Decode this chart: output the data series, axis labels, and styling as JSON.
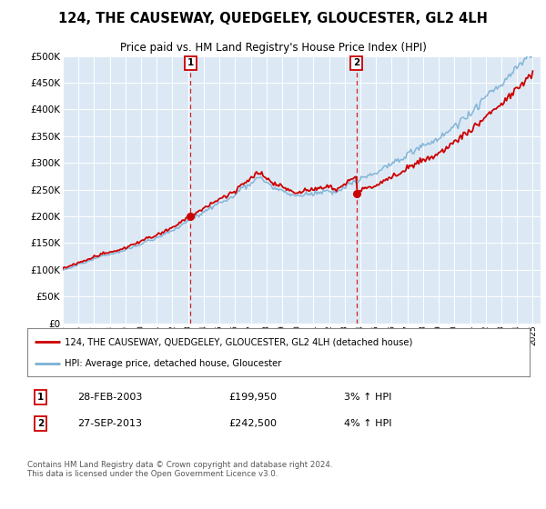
{
  "title": "124, THE CAUSEWAY, QUEDGELEY, GLOUCESTER, GL2 4LH",
  "subtitle": "Price paid vs. HM Land Registry's House Price Index (HPI)",
  "hpi_line_color": "#7bafd4",
  "price_line_color": "#cc0000",
  "plot_bg_color": "#dce9f5",
  "grid_color": "#b0c4de",
  "ylim": [
    0,
    500000
  ],
  "yticks": [
    0,
    50000,
    100000,
    150000,
    200000,
    250000,
    300000,
    350000,
    400000,
    450000,
    500000
  ],
  "xlim_start": 1995.0,
  "xlim_end": 2025.5,
  "sale1_x": 2003.16,
  "sale1_y": 199950,
  "sale2_x": 2013.74,
  "sale2_y": 242500,
  "legend_line1": "124, THE CAUSEWAY, QUEDGELEY, GLOUCESTER, GL2 4LH (detached house)",
  "legend_line2": "HPI: Average price, detached house, Gloucester",
  "footer": "Contains HM Land Registry data © Crown copyright and database right 2024.\nThis data is licensed under the Open Government Licence v3.0.",
  "xtick_years": [
    1995,
    1996,
    1997,
    1998,
    1999,
    2000,
    2001,
    2002,
    2003,
    2004,
    2005,
    2006,
    2007,
    2008,
    2009,
    2010,
    2011,
    2012,
    2013,
    2014,
    2015,
    2016,
    2017,
    2018,
    2019,
    2020,
    2021,
    2022,
    2023,
    2024,
    2025
  ]
}
